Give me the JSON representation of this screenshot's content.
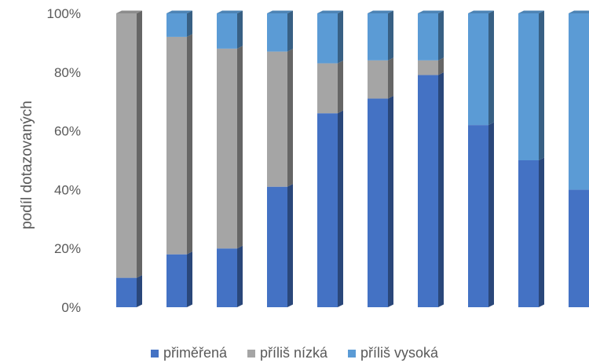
{
  "chart_data": {
    "type": "bar",
    "stacked": true,
    "style": "3d-column",
    "ylabel": "podíl dotazovaných",
    "ylim": [
      0,
      100
    ],
    "yticks": [
      "0%",
      "20%",
      "40%",
      "60%",
      "80%",
      "100%"
    ],
    "categories": [
      "",
      "",
      "",
      "",
      "",
      "",
      "",
      "",
      "",
      ""
    ],
    "series": [
      {
        "name": "přiměřená",
        "color": "#4472C4",
        "values": [
          10,
          18,
          20,
          41,
          66,
          71,
          79,
          62,
          50,
          40
        ]
      },
      {
        "name": "příliš nízká",
        "color": "#A5A5A5",
        "values": [
          90,
          74,
          68,
          46,
          17,
          13,
          5,
          0,
          0,
          0
        ]
      },
      {
        "name": "příliš vysoká",
        "color": "#5B9BD5",
        "values": [
          0,
          8,
          12,
          13,
          17,
          16,
          16,
          38,
          50,
          60
        ]
      }
    ],
    "legend_position": "bottom",
    "grid": false
  }
}
